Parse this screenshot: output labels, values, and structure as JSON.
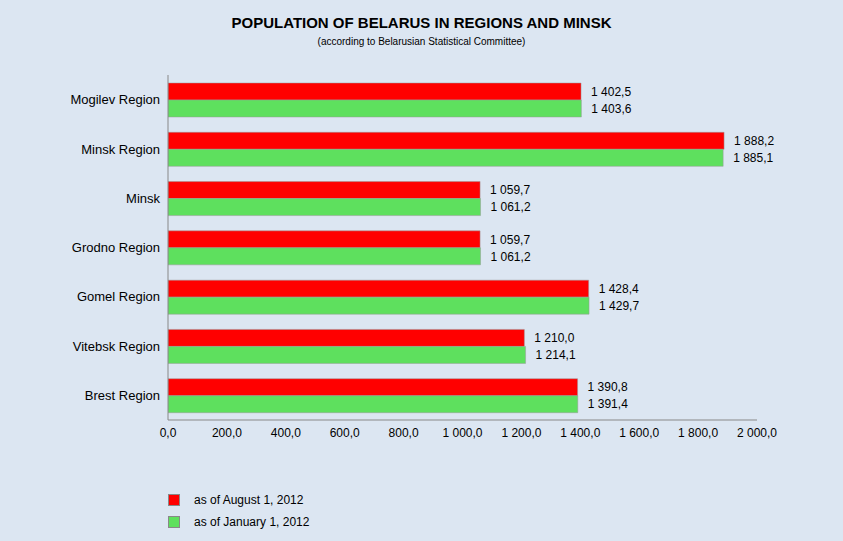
{
  "chart_data": {
    "type": "bar",
    "title": "POPULATION OF BELARUS IN REGIONS AND MINSK",
    "subtitle": "(according to Belarusian Statistical Committee)",
    "orientation": "horizontal",
    "categories": [
      "Mogilev Region",
      "Minsk Region",
      "Minsk",
      "Grodno Region",
      "Gomel Region",
      "Vitebsk Region",
      "Brest Region"
    ],
    "series": [
      {
        "name": "as of August 1, 2012",
        "color": "#ff0000",
        "values": [
          1402.5,
          1888.2,
          1059.7,
          1059.7,
          1428.4,
          1210.0,
          1390.8
        ],
        "value_labels": [
          "1 402,5",
          "1 888,2",
          "1 059,7",
          "1 059,7",
          "1 428,4",
          "1 210,0",
          "1 390,8"
        ]
      },
      {
        "name": "as of January 1, 2012",
        "color": "#5ee05e",
        "values": [
          1403.6,
          1885.1,
          1061.2,
          1061.2,
          1429.7,
          1214.1,
          1391.4
        ],
        "value_labels": [
          "1 403,6",
          "1 885,1",
          "1 061,2",
          "1 061,2",
          "1 429,7",
          "1 214,1",
          "1 391,4"
        ]
      }
    ],
    "xlim": [
      0,
      2000
    ],
    "xticks": [
      {
        "value": 0,
        "label": "0,0"
      },
      {
        "value": 200,
        "label": "200,0"
      },
      {
        "value": 400,
        "label": "400,0"
      },
      {
        "value": 600,
        "label": "600,0"
      },
      {
        "value": 800,
        "label": "800,0"
      },
      {
        "value": 1000,
        "label": "1 000,0"
      },
      {
        "value": 1200,
        "label": "1 200,0"
      },
      {
        "value": 1400,
        "label": "1 400,0"
      },
      {
        "value": 1600,
        "label": "1 600,0"
      },
      {
        "value": 1800,
        "label": "1 800,0"
      },
      {
        "value": 2000,
        "label": "2 000,0"
      }
    ],
    "grid": false,
    "data_labels": true,
    "legend": "bottom-left"
  }
}
